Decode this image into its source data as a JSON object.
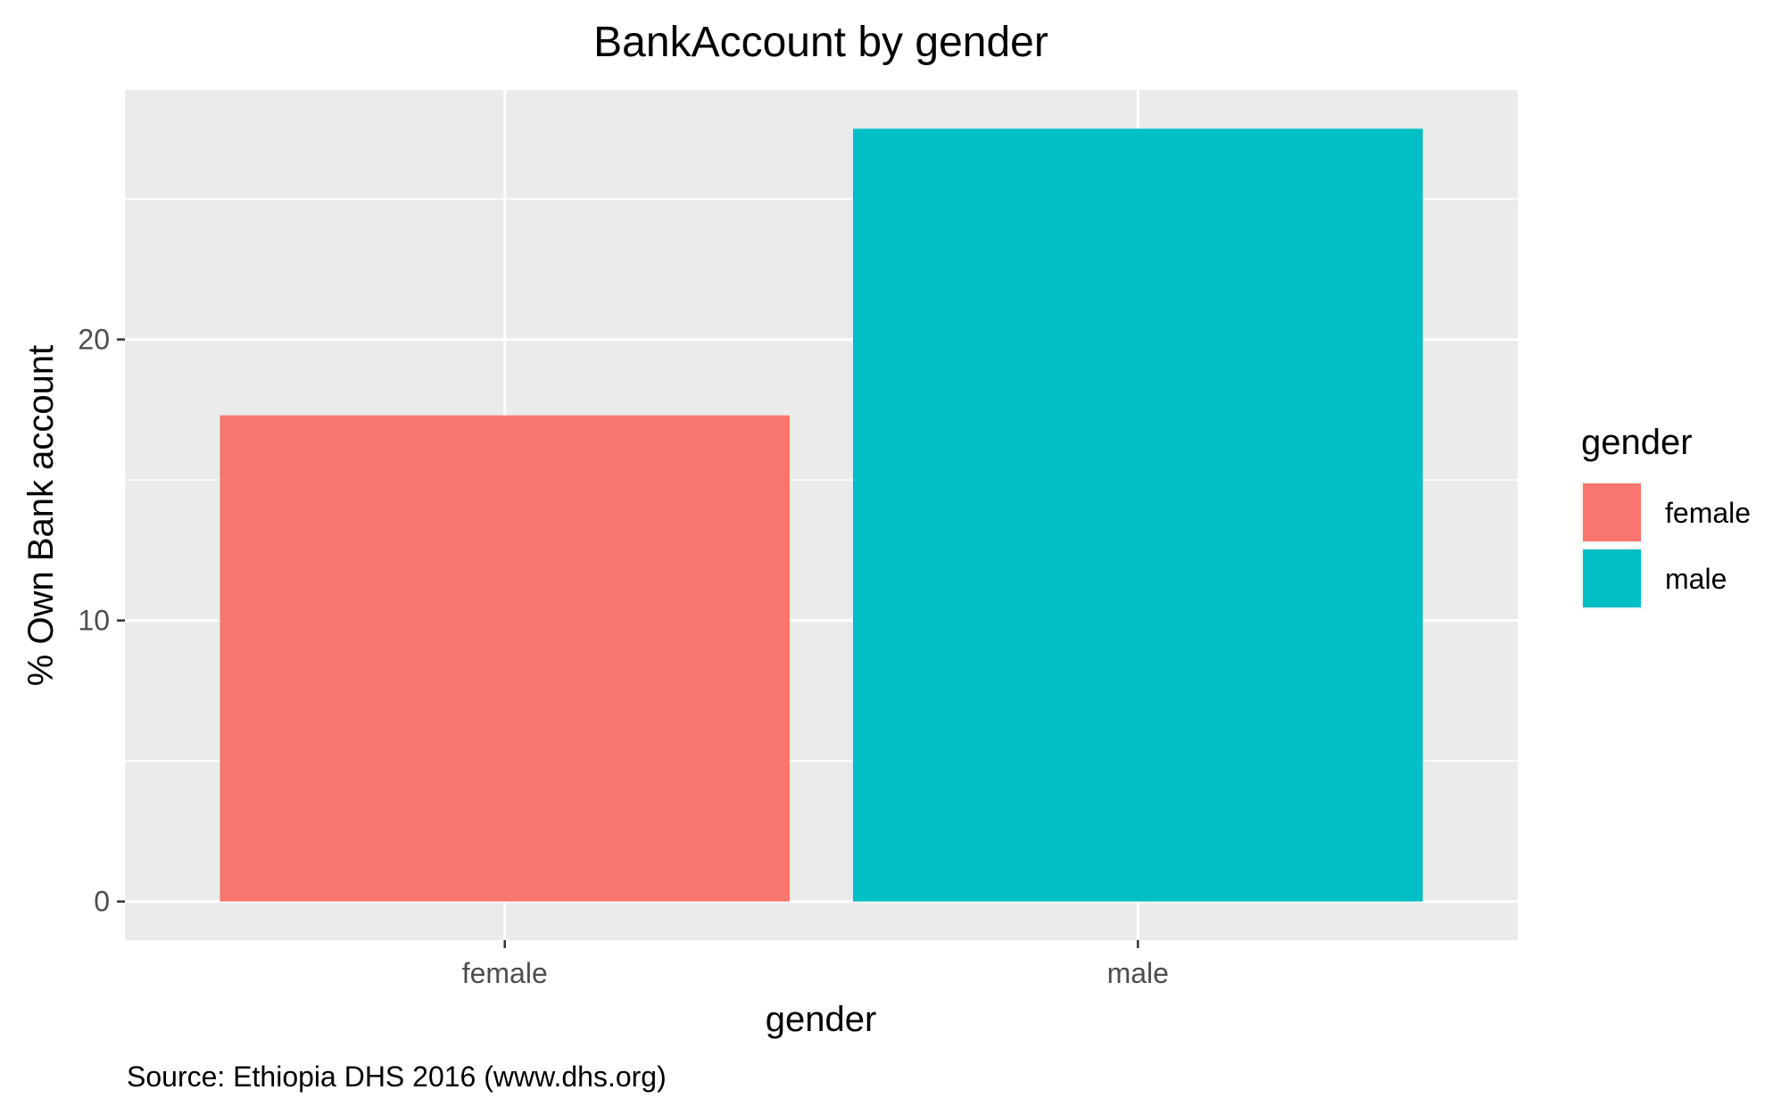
{
  "chart_data": {
    "type": "bar",
    "title": "BankAccount by gender",
    "xlabel": "gender",
    "ylabel": "% Own Bank account",
    "categories": [
      "female",
      "male"
    ],
    "values": [
      17.3,
      27.5
    ],
    "colors": [
      "#F8766D",
      "#00BFC4"
    ],
    "ylim": [
      -1.375,
      28.875
    ],
    "yticks": [
      0,
      10,
      20
    ],
    "grid": true,
    "legend": {
      "title": "gender",
      "placement": "right",
      "entries": [
        "female",
        "male"
      ]
    },
    "caption": "Source: Ethiopia DHS 2016 (www.dhs.org)"
  }
}
